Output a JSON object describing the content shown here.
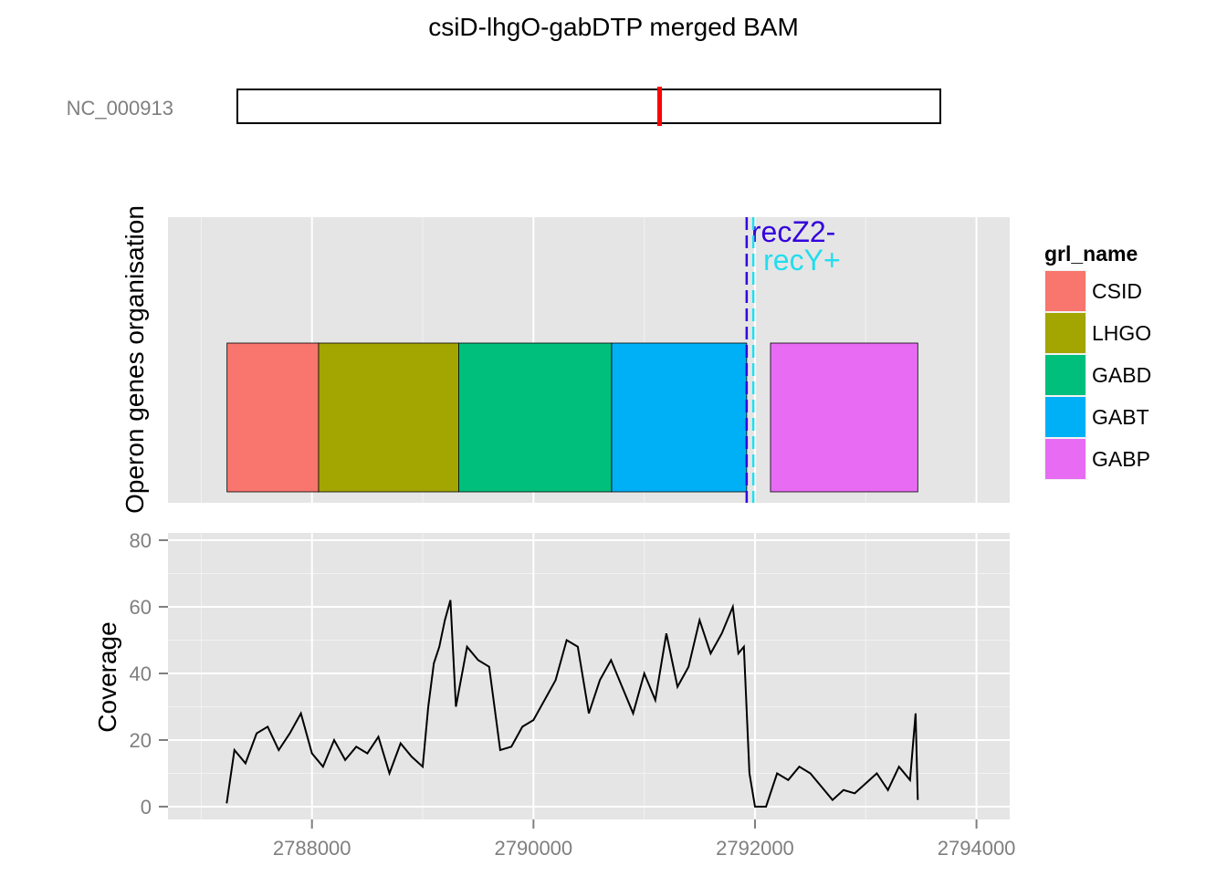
{
  "title": "csiD-lhgO-gabDTP merged BAM",
  "ideogram": {
    "chromosome": "NC_000913",
    "marker_color": "#ff0000"
  },
  "chart_data": [
    {
      "type": "bar",
      "subtype": "gene-track",
      "ylabel": "Operon genes organisation",
      "xlim": [
        2786700,
        2794300
      ],
      "legend": {
        "title": "grl_name",
        "position": "right"
      },
      "genes": [
        {
          "name": "CSID",
          "start": 2787233,
          "end": 2788060,
          "color": "#F8766D"
        },
        {
          "name": "LHGO",
          "start": 2788060,
          "end": 2789325,
          "color": "#A3A500"
        },
        {
          "name": "GABD",
          "start": 2789325,
          "end": 2790706,
          "color": "#00BF7D"
        },
        {
          "name": "GABT",
          "start": 2790706,
          "end": 2791925,
          "color": "#00B0F6"
        },
        {
          "name": "GABP",
          "start": 2792140,
          "end": 2793470,
          "color": "#E76BF3"
        }
      ],
      "annotations": [
        {
          "label": "recZ2-",
          "x": 2791925,
          "color": "#3300dd"
        },
        {
          "label": "recY+",
          "x": 2791985,
          "color": "#22ddee"
        }
      ],
      "grid": true
    },
    {
      "type": "line",
      "ylabel": "Coverage",
      "xlim": [
        2786700,
        2794300
      ],
      "ylim": [
        -3,
        82
      ],
      "x_ticks": [
        "2788000",
        "2790000",
        "2792000",
        "2794000"
      ],
      "y_ticks": [
        "0",
        "20",
        "40",
        "60",
        "80"
      ],
      "series": [
        {
          "color": "#000000",
          "x": [
            2787230,
            2787300,
            2787400,
            2787500,
            2787600,
            2787700,
            2787800,
            2787900,
            2788000,
            2788100,
            2788200,
            2788300,
            2788400,
            2788500,
            2788600,
            2788700,
            2788800,
            2788900,
            2789000,
            2789050,
            2789100,
            2789150,
            2789200,
            2789250,
            2789300,
            2789400,
            2789500,
            2789600,
            2789700,
            2789800,
            2789900,
            2790000,
            2790100,
            2790200,
            2790300,
            2790400,
            2790500,
            2790600,
            2790700,
            2790800,
            2790900,
            2791000,
            2791100,
            2791200,
            2791300,
            2791400,
            2791500,
            2791600,
            2791700,
            2791800,
            2791850,
            2791900,
            2791950,
            2792000,
            2792100,
            2792200,
            2792300,
            2792400,
            2792500,
            2792600,
            2792700,
            2792800,
            2792900,
            2793000,
            2793100,
            2793200,
            2793300,
            2793400,
            2793450,
            2793470
          ],
          "y": [
            1,
            17,
            13,
            22,
            24,
            17,
            22,
            28,
            16,
            12,
            20,
            14,
            18,
            16,
            21,
            10,
            19,
            15,
            12,
            30,
            43,
            48,
            56,
            62,
            30,
            48,
            44,
            42,
            17,
            18,
            24,
            26,
            32,
            38,
            50,
            48,
            28,
            38,
            44,
            36,
            28,
            40,
            32,
            52,
            36,
            42,
            56,
            46,
            52,
            60,
            46,
            48,
            10,
            0,
            0,
            10,
            8,
            12,
            10,
            6,
            2,
            5,
            4,
            7,
            10,
            5,
            12,
            8,
            28,
            2
          ]
        }
      ],
      "grid": true
    }
  ]
}
